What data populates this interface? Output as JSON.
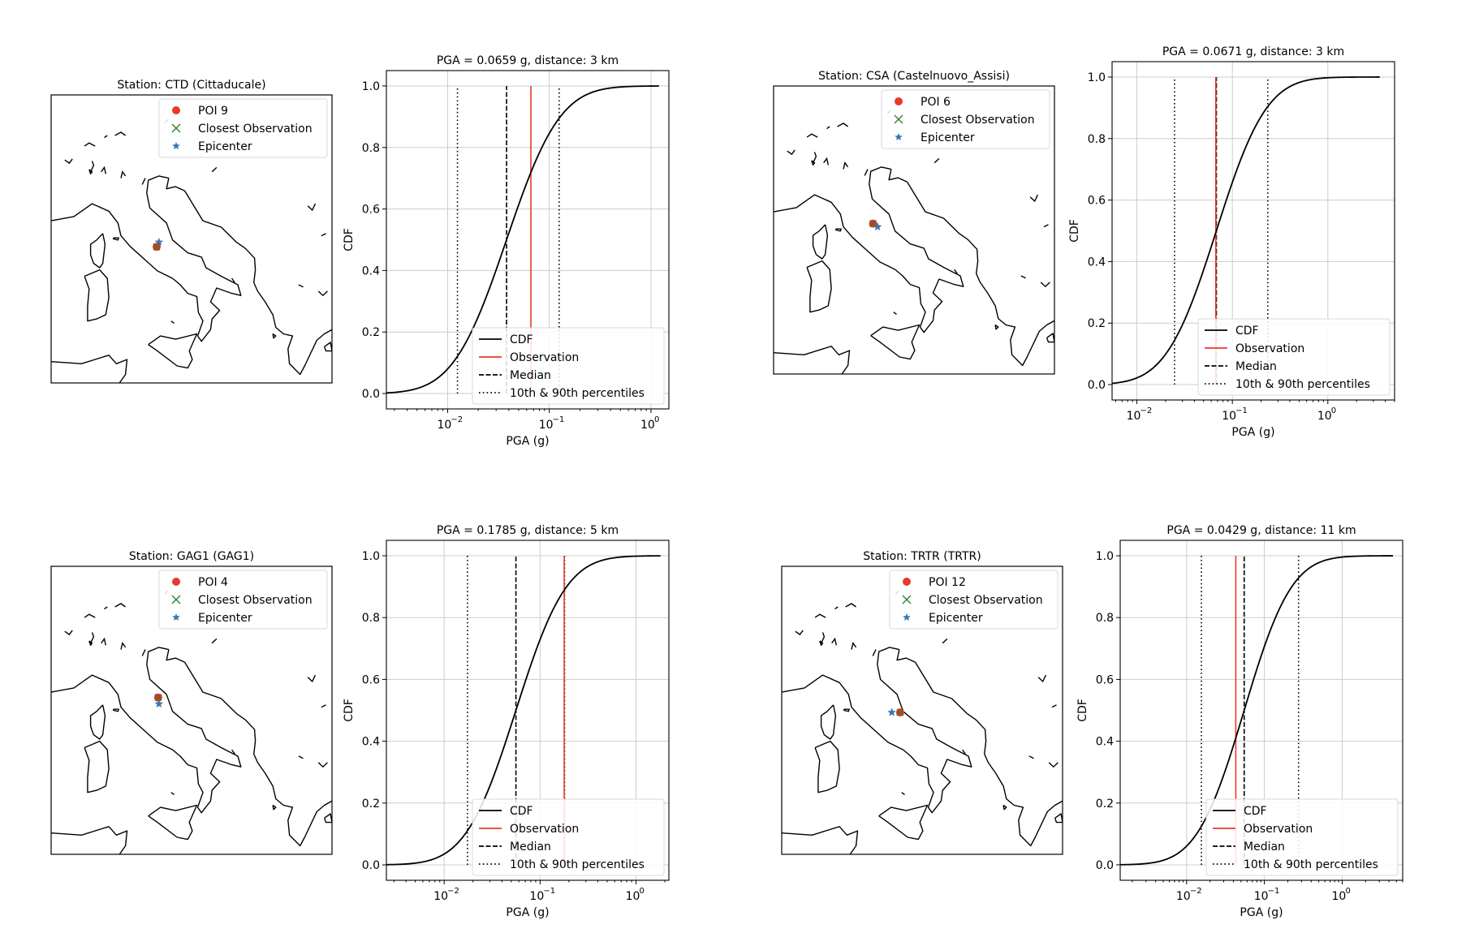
{
  "colors": {
    "cdf": "#000000",
    "observation": "#e8392a",
    "poi": "#e8392a",
    "closest_observation": "#2e7d32",
    "epicenter": "#3a78b5",
    "grid": "#cccccc"
  },
  "legend_map": {
    "closest_label": "Closest Observation",
    "epicenter_label": "Epicenter"
  },
  "legend_cdf": {
    "cdf_label": "CDF",
    "observation_label": "Observation",
    "median_label": "Median",
    "percentiles_label": "10th & 90th percentiles"
  },
  "panels": [
    {
      "map": {
        "title": "Station: CTD (Cittaducale)",
        "poi_label": "POI 9",
        "poi_lonlat": [
          12.95,
          42.38
        ],
        "epicenter_lonlat": [
          13.1,
          42.6
        ]
      },
      "chart_data": {
        "type": "line",
        "title": "PGA = 0.0659 g, distance: 3 km",
        "xlabel": "PGA (g)",
        "ylabel": "CDF",
        "xscale": "log",
        "xlim": [
          0.0025,
          1.5
        ],
        "ylim": [
          -0.05,
          1.05
        ],
        "xticks": [
          {
            "value": 0.01,
            "label": "10"
          },
          {
            "value": 0.1,
            "label": "10"
          },
          {
            "value": 1,
            "label": "10"
          }
        ],
        "xtick_exponents": [
          "−2",
          "−1",
          "0"
        ],
        "yticks": [
          0,
          0.2,
          0.4,
          0.6,
          0.8,
          1.0
        ],
        "ytick_labels": [
          "0.0",
          "0.2",
          "0.4",
          "0.6",
          "0.8",
          "1.0"
        ],
        "grid": true,
        "legend_position": "lower-right",
        "curve": {
          "median": 0.038,
          "sigma": 0.95,
          "xmin": 0.0025,
          "xmax": 1.2
        },
        "observation": 0.0659,
        "median": 0.038,
        "p10": 0.0125,
        "p90": 0.125
      }
    },
    {
      "map": {
        "title": "Station: CSA (Castelnuovo_Assisi)",
        "poi_label": "POI 6",
        "poi_lonlat": [
          12.55,
          43.05
        ],
        "epicenter_lonlat": [
          12.85,
          42.9
        ]
      },
      "chart_data": {
        "type": "line",
        "title": "PGA = 0.0671 g, distance: 3 km",
        "xlabel": "PGA (g)",
        "ylabel": "CDF",
        "xscale": "log",
        "xlim": [
          0.0055,
          5.0
        ],
        "ylim": [
          -0.05,
          1.05
        ],
        "xticks": [
          {
            "value": 0.01,
            "label": "10"
          },
          {
            "value": 0.1,
            "label": "10"
          },
          {
            "value": 1,
            "label": "10"
          }
        ],
        "xtick_exponents": [
          "−2",
          "−1",
          "0"
        ],
        "yticks": [
          0,
          0.2,
          0.4,
          0.6,
          0.8,
          1.0
        ],
        "ytick_labels": [
          "0.0",
          "0.2",
          "0.4",
          "0.6",
          "0.8",
          "1.0"
        ],
        "grid": true,
        "legend_position": "lower-right",
        "curve": {
          "median": 0.068,
          "sigma": 0.95,
          "xmin": 0.0055,
          "xmax": 3.5
        },
        "observation": 0.0671,
        "median": 0.068,
        "p10": 0.0248,
        "p90": 0.235
      }
    },
    {
      "map": {
        "title": "Station: GAG1 (GAG1)",
        "poi_label": "POI 4",
        "poi_lonlat": [
          13.05,
          43.35
        ],
        "epicenter_lonlat": [
          13.1,
          43.05
        ]
      },
      "chart_data": {
        "type": "line",
        "title": "PGA = 0.1785 g, distance: 5 km",
        "xlabel": "PGA (g)",
        "ylabel": "CDF",
        "xscale": "log",
        "xlim": [
          0.0025,
          2.2
        ],
        "ylim": [
          -0.05,
          1.05
        ],
        "xticks": [
          {
            "value": 0.01,
            "label": "10"
          },
          {
            "value": 0.1,
            "label": "10"
          },
          {
            "value": 1,
            "label": "10"
          }
        ],
        "xtick_exponents": [
          "−2",
          "−1",
          "0"
        ],
        "yticks": [
          0,
          0.2,
          0.4,
          0.6,
          0.8,
          1.0
        ],
        "ytick_labels": [
          "0.0",
          "0.2",
          "0.4",
          "0.6",
          "0.8",
          "1.0"
        ],
        "grid": true,
        "legend_position": "lower-right",
        "curve": {
          "median": 0.056,
          "sigma": 0.95,
          "xmin": 0.0025,
          "xmax": 1.8
        },
        "observation": 0.1785,
        "median": 0.056,
        "p10": 0.0175,
        "p90": 0.18
      }
    },
    {
      "map": {
        "title": "Station: TRTR (TRTR)",
        "poi_label": "POI 12",
        "poi_lonlat": [
          13.8,
          42.65
        ],
        "epicenter_lonlat": [
          13.25,
          42.65
        ]
      },
      "chart_data": {
        "type": "line",
        "title": "PGA = 0.0429 g, distance: 11 km",
        "xlabel": "PGA (g)",
        "ylabel": "CDF",
        "xscale": "log",
        "xlim": [
          0.0014,
          6.0
        ],
        "ylim": [
          -0.05,
          1.05
        ],
        "xticks": [
          {
            "value": 0.01,
            "label": "10"
          },
          {
            "value": 0.1,
            "label": "10"
          },
          {
            "value": 1,
            "label": "10"
          }
        ],
        "xtick_exponents": [
          "−2",
          "−1",
          "0"
        ],
        "yticks": [
          0,
          0.2,
          0.4,
          0.6,
          0.8,
          1.0
        ],
        "ytick_labels": [
          "0.0",
          "0.2",
          "0.4",
          "0.6",
          "0.8",
          "1.0"
        ],
        "grid": true,
        "legend_position": "lower-right",
        "curve": {
          "median": 0.055,
          "sigma": 1.1,
          "xmin": 0.0014,
          "xmax": 4.5
        },
        "observation": 0.0429,
        "median": 0.055,
        "p10": 0.0155,
        "p90": 0.275
      }
    }
  ]
}
